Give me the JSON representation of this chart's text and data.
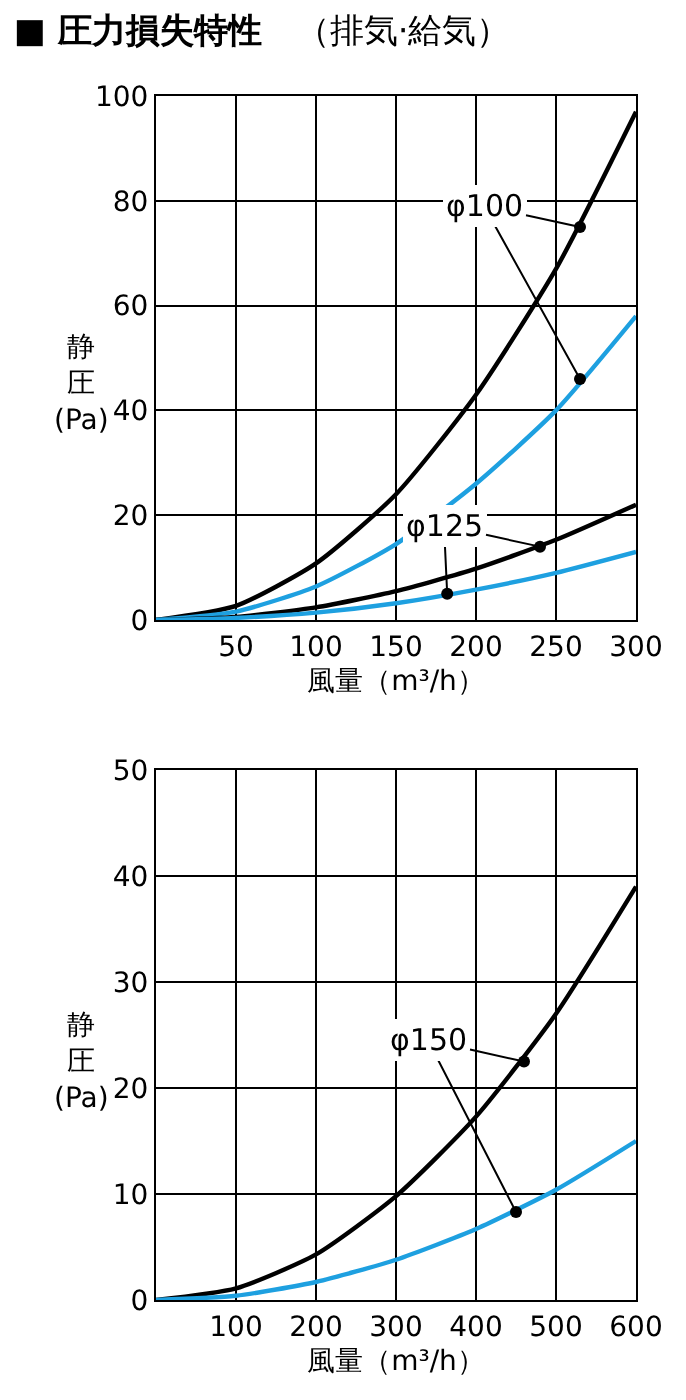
{
  "chart_data": [
    {
      "type": "line",
      "title": "■ 圧力損失特性",
      "subtitle": "（排気·給気）",
      "xlabel": "風量（m³/h）",
      "ylabel": "静圧(Pa)",
      "x": [
        0,
        50,
        100,
        150,
        200,
        250,
        300
      ],
      "series": [
        {
          "color": "#000000",
          "values": [
            0,
            2.7,
            10.8,
            24,
            43,
            67,
            97
          ]
        },
        {
          "color": "#1ea0e0",
          "values": [
            0,
            1.6,
            6.4,
            14.5,
            26,
            40,
            58
          ]
        },
        {
          "color": "#000000",
          "values": [
            0,
            0.6,
            2.4,
            5.5,
            9.8,
            15.3,
            22
          ]
        },
        {
          "color": "#1ea0e0",
          "values": [
            0,
            0.4,
            1.4,
            3.2,
            5.8,
            9,
            13
          ]
        },
        {
          "type": "scatter",
          "marker": "circle",
          "color": "#000000",
          "x": [
            265,
            265
          ],
          "values": [
            75,
            46
          ]
        },
        {
          "type": "scatter",
          "marker": "circle",
          "color": "#000000",
          "x": [
            240,
            182
          ],
          "values": [
            14,
            5
          ]
        }
      ],
      "annotations": [
        {
          "text": "φ100",
          "x": 265,
          "y": 75
        },
        {
          "text": "φ125",
          "x": 240,
          "y": 14
        }
      ],
      "xlim": [
        0,
        300
      ],
      "xticks": [
        {
          "value": 0,
          "label": null
        },
        50,
        100,
        150,
        200,
        250,
        300
      ],
      "ylim": [
        0,
        100
      ],
      "yticks": [
        0,
        20,
        40,
        60,
        80,
        100
      ],
      "grid": true,
      "marker": "none",
      "line_style": "solid"
    },
    {
      "type": "line",
      "xlabel": "風量（m³/h）",
      "ylabel": "静圧(Pa)",
      "x": [
        0,
        100,
        200,
        300,
        400,
        500,
        600
      ],
      "series": [
        {
          "color": "#000000",
          "values": [
            0,
            1.1,
            4.3,
            9.8,
            17.3,
            27,
            39
          ]
        },
        {
          "color": "#1ea0e0",
          "values": [
            0,
            0.4,
            1.7,
            3.8,
            6.7,
            10.4,
            15
          ]
        },
        {
          "type": "scatter",
          "marker": "circle",
          "color": "#000000",
          "x": [
            460,
            450
          ],
          "values": [
            22.5,
            8.3
          ]
        }
      ],
      "annotations": [
        {
          "text": "φ150",
          "x": 460,
          "y": 22.5
        }
      ],
      "xlim": [
        0,
        600
      ],
      "xticks": [
        {
          "value": 0,
          "label": null
        },
        100,
        200,
        300,
        400,
        500,
        600
      ],
      "ylim": [
        0,
        50
      ],
      "yticks": [
        0,
        10,
        20,
        30,
        40,
        50
      ],
      "grid": true,
      "marker": "none",
      "line_style": "solid"
    }
  ]
}
